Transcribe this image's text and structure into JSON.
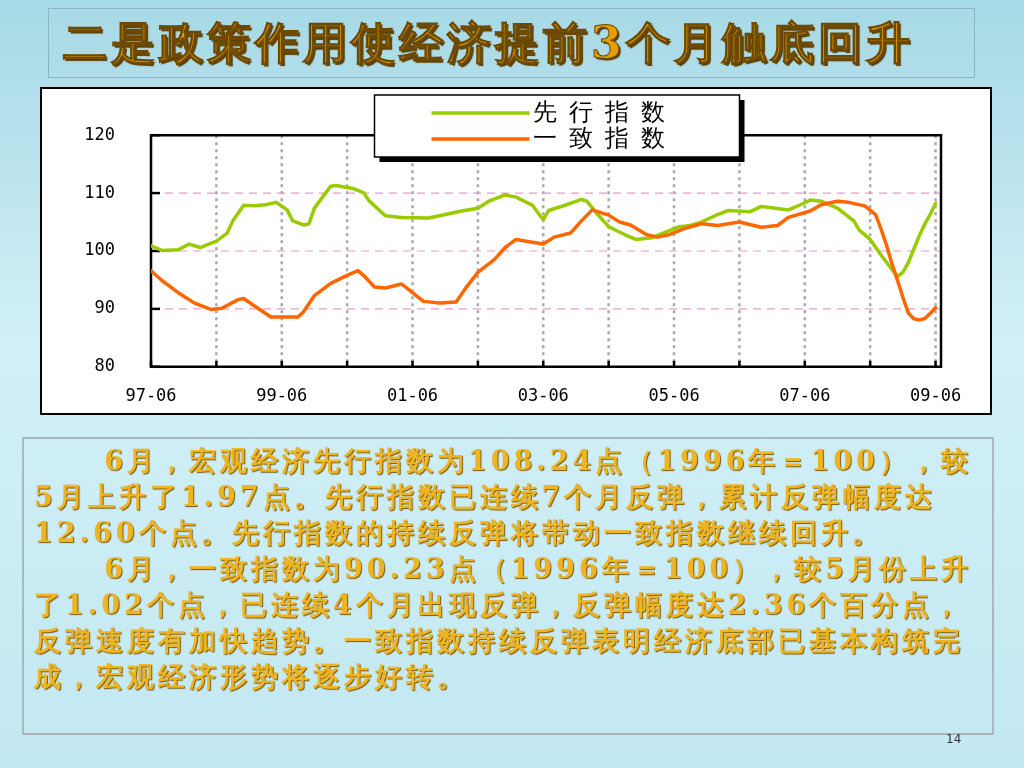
{
  "chart_data": {
    "type": "line",
    "title": "二是政策作用使经济提前3个月触底回升",
    "annotations": [
      "6月，宏观经济先行指数为108.24点（1996年＝100），较5月上升了1.97点。先行指数已连续7个月反弹，累计反弹幅度达12.60个点。先行指数的持续反弹将带动一致指数继续回升。",
      "6月，一致指数为90.23点（1996年＝100），较5月份上升了1.02个点，已连续4个月出现反弹，反弹幅度达2.36个百分点，反弹速度有加快趋势。一致指数持续反弹表明经济底部已基本构筑完成，宏观经济形势将逐步好转。",
      "14"
    ],
    "series": [
      {
        "name": "先行指数",
        "color": "#99cc00",
        "x": [
          "1997-06",
          "1997-08",
          "1997-11",
          "1998-01",
          "1998-03",
          "1998-06",
          "1998-08",
          "1998-09",
          "1998-11",
          "1999-01",
          "1999-03",
          "1999-05",
          "1999-07",
          "1999-08",
          "1999-10",
          "1999-11",
          "1999-12",
          "2000-03",
          "2000-04",
          "2000-07",
          "2000-09",
          "2000-10",
          "2001-01",
          "2001-04",
          "2001-09",
          "2001-12",
          "2002-03",
          "2002-06",
          "2002-08",
          "2002-11",
          "2003-01",
          "2003-04",
          "2003-06",
          "2003-07",
          "2003-10",
          "2004-01",
          "2004-02",
          "2004-04",
          "2004-06",
          "2004-09",
          "2004-11",
          "2005-02",
          "2005-04",
          "2005-07",
          "2005-09",
          "2005-11",
          "2006-02",
          "2006-04",
          "2006-08",
          "2006-10",
          "2007-03",
          "2007-05",
          "2007-07",
          "2007-09",
          "2007-12",
          "2008-03",
          "2008-04",
          "2008-06",
          "2008-08",
          "2008-10",
          "2008-11",
          "2008-12",
          "2009-01",
          "2009-02",
          "2009-03",
          "2009-04",
          "2009-05",
          "2009-06"
        ],
        "values": [
          100.9,
          100.1,
          100.2,
          101.2,
          100.6,
          101.7,
          103.1,
          105.2,
          107.9,
          107.8,
          108.0,
          108.4,
          107.1,
          105.2,
          104.5,
          104.7,
          107.4,
          111.2,
          111.3,
          110.8,
          110.1,
          108.7,
          106.1,
          105.8,
          105.7,
          106.3,
          106.9,
          107.4,
          108.6,
          109.7,
          109.3,
          107.9,
          105.4,
          107.0,
          107.9,
          108.9,
          108.6,
          106.3,
          104.2,
          102.8,
          102.0,
          102.3,
          103.1,
          104.2,
          104.4,
          105.0,
          106.3,
          107.0,
          106.8,
          107.7,
          107.1,
          107.9,
          108.8,
          108.6,
          107.4,
          105.2,
          103.6,
          102.0,
          99.3,
          96.8,
          95.6,
          96.3,
          98.0,
          100.3,
          102.6,
          104.6,
          106.3,
          108.2
        ]
      },
      {
        "name": "一致指数",
        "color": "#ff6600",
        "x": [
          "1997-06",
          "1997-08",
          "1997-11",
          "1998-02",
          "1998-05",
          "1998-07",
          "1998-10",
          "1998-11",
          "1999-01",
          "1999-04",
          "1999-09",
          "1999-10",
          "1999-12",
          "2000-03",
          "2000-06",
          "2000-08",
          "2000-09",
          "2000-11",
          "2001-01",
          "2001-04",
          "2001-06",
          "2001-08",
          "2001-11",
          "2002-02",
          "2002-04",
          "2002-06",
          "2002-09",
          "2002-11",
          "2003-01",
          "2003-04",
          "2003-06",
          "2003-08",
          "2003-11",
          "2004-01",
          "2004-03",
          "2004-06",
          "2004-08",
          "2004-10",
          "2005-01",
          "2005-03",
          "2005-05",
          "2005-08",
          "2005-11",
          "2006-02",
          "2006-06",
          "2006-10",
          "2007-01",
          "2007-03",
          "2007-07",
          "2007-09",
          "2007-12",
          "2008-02",
          "2008-05",
          "2008-07",
          "2008-08",
          "2008-09",
          "2008-10",
          "2008-11",
          "2008-12",
          "2009-01",
          "2009-02",
          "2009-03",
          "2009-04",
          "2009-05",
          "2009-06"
        ],
        "values": [
          96.6,
          94.9,
          92.8,
          91.0,
          89.9,
          90.1,
          91.6,
          91.8,
          90.5,
          88.6,
          88.6,
          89.5,
          92.3,
          94.4,
          95.8,
          96.6,
          95.8,
          93.8,
          93.6,
          94.3,
          92.8,
          91.3,
          91.0,
          91.2,
          93.9,
          96.3,
          98.5,
          100.6,
          102.0,
          101.5,
          101.2,
          102.4,
          103.1,
          105.2,
          107.1,
          106.2,
          105.0,
          104.5,
          102.8,
          102.4,
          102.8,
          103.9,
          104.7,
          104.4,
          105.0,
          104.1,
          104.4,
          105.8,
          106.9,
          108.0,
          108.6,
          108.4,
          107.8,
          106.3,
          103.8,
          101.0,
          97.8,
          95.0,
          92.0,
          89.3,
          88.3,
          88.1,
          88.3,
          89.2,
          90.2
        ]
      }
    ],
    "xlim": [
      "1997-06",
      "2009-07"
    ],
    "xticks": [
      {
        "value": "1997-06",
        "label": "97-06"
      },
      {
        "value": "1998-06",
        "label": null
      },
      {
        "value": "1999-06",
        "label": "99-06"
      },
      {
        "value": "2000-06",
        "label": null
      },
      {
        "value": "2001-06",
        "label": "01-06"
      },
      {
        "value": "2002-06",
        "label": null
      },
      {
        "value": "2003-06",
        "label": "03-06"
      },
      {
        "value": "2004-06",
        "label": null
      },
      {
        "value": "2005-06",
        "label": "05-06"
      },
      {
        "value": "2006-06",
        "label": null
      },
      {
        "value": "2007-06",
        "label": "07-06"
      },
      {
        "value": "2008-06",
        "label": null
      },
      {
        "value": "2009-06",
        "label": "09-06"
      }
    ],
    "ylim": [
      80,
      120
    ],
    "yticks": [
      80,
      90,
      100,
      110,
      120
    ],
    "grid": true,
    "legend": "top",
    "marker": "none",
    "line_style": "solid"
  }
}
